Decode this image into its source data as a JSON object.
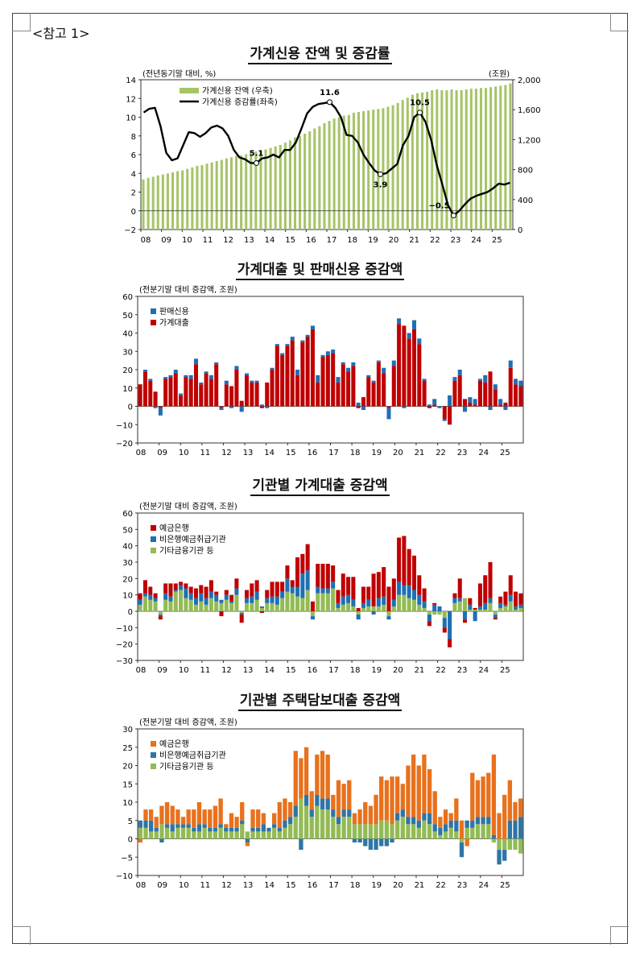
{
  "header": {
    "ref_label": "<참고 1>"
  },
  "colors": {
    "bank": "#c00000",
    "nonbank": "#1f6fb4",
    "other": "#93bb55",
    "mort_bank": "#e8711d",
    "mort_nonbank": "#2e75a6",
    "balance": "#a6c468",
    "growth": "#000000"
  },
  "chart_data": [
    {
      "type": "line",
      "title": "가계신용 잔액 및 증감률",
      "unit_left": "(전년동기말 대비, %)",
      "unit_right": "(조원)",
      "x_ticks": [
        "08",
        "09",
        "10",
        "11",
        "12",
        "13",
        "14",
        "15",
        "16",
        "17",
        "18",
        "19",
        "20",
        "21",
        "22",
        "23",
        "24",
        "25"
      ],
      "ylim_left": [
        -2,
        14
      ],
      "yticks_left": [
        "14",
        "12",
        "10",
        "8",
        "6",
        "4",
        "2",
        "0",
        "−2"
      ],
      "ylim_right": [
        0,
        2000
      ],
      "yticks_right": [
        "2,000",
        "1,600",
        "1,200",
        "800",
        "400",
        "0"
      ],
      "legend": {
        "placement": "top-left"
      },
      "series": [
        {
          "name": "가계신용 잔액 (우축)",
          "type": "bar",
          "axis": "right",
          "start": "2008Q1",
          "values": [
            670,
            690,
            705,
            723,
            735,
            748,
            763,
            780,
            790,
            810,
            830,
            850,
            860,
            880,
            895,
            915,
            930,
            950,
            965,
            985,
            990,
            1005,
            1020,
            1040,
            1050,
            1070,
            1090,
            1110,
            1130,
            1160,
            1190,
            1230,
            1250,
            1280,
            1310,
            1350,
            1380,
            1420,
            1450,
            1480,
            1500,
            1520,
            1530,
            1560,
            1570,
            1580,
            1590,
            1600,
            1610,
            1620,
            1640,
            1660,
            1690,
            1730,
            1760,
            1800,
            1820,
            1830,
            1840,
            1860,
            1870,
            1860,
            1860,
            1870,
            1860,
            1860,
            1870,
            1880,
            1880,
            1890,
            1890,
            1900,
            1910,
            1920,
            1930,
            1950
          ]
        },
        {
          "name": "가계신용 증감률(좌축)",
          "type": "line",
          "axis": "left",
          "start": "2008Q1",
          "values": [
            10.5,
            10.9,
            11.0,
            9.0,
            6.2,
            5.4,
            5.6,
            7.0,
            8.4,
            8.3,
            7.9,
            8.3,
            8.9,
            9.1,
            8.8,
            8.0,
            6.5,
            5.7,
            5.5,
            5.1,
            5.1,
            5.6,
            5.7,
            6.0,
            5.7,
            6.5,
            6.5,
            7.3,
            8.8,
            10.4,
            11.1,
            11.4,
            11.5,
            11.6,
            11.0,
            10.0,
            8.1,
            8.0,
            7.3,
            6.0,
            5.1,
            4.3,
            3.9,
            4.0,
            4.5,
            5.0,
            7.0,
            8.0,
            10.0,
            10.5,
            9.5,
            7.6,
            4.9,
            2.8,
            0.6,
            -0.5,
            0.0,
            0.7,
            1.3,
            1.6,
            1.8,
            2.0,
            2.4,
            2.9,
            2.8,
            3.0
          ]
        }
      ],
      "annotations": [
        {
          "label": "5.1",
          "x_index": 20
        },
        {
          "label": "11.6",
          "x_index": 33
        },
        {
          "label": "3.9",
          "x_index": 42
        },
        {
          "label": "10.5",
          "x_index": 49
        },
        {
          "label": "−0.5",
          "x_index": 55
        }
      ]
    },
    {
      "type": "bar",
      "title": "가계대출 및 판매신용 증감액",
      "unit": "(전분기말 대비 증감액, 조원)",
      "x_ticks": [
        "08",
        "09",
        "10",
        "11",
        "12",
        "13",
        "14",
        "15",
        "16",
        "17",
        "18",
        "19",
        "20",
        "21",
        "22",
        "23",
        "24",
        "25"
      ],
      "ylim": [
        -20,
        60
      ],
      "yticks": [
        "60",
        "50",
        "40",
        "30",
        "20",
        "10",
        "0",
        "−10",
        "−20"
      ],
      "legend": {
        "placement": "top-left"
      },
      "stacked": true,
      "series": [
        {
          "name": "판매신용",
          "color_key": "nonbank",
          "values": [
            0,
            1,
            1,
            -1,
            -4,
            1,
            1,
            2,
            1,
            1,
            2,
            3,
            1,
            1,
            2,
            1,
            -1,
            2,
            -1,
            2,
            -3,
            1,
            1,
            1,
            1,
            -1,
            1,
            1,
            1,
            1,
            2,
            3,
            1,
            1,
            2,
            4,
            1,
            2,
            2,
            3,
            1,
            2,
            2,
            2,
            -2,
            1,
            1,
            1,
            3,
            -6,
            3,
            3,
            -1,
            3,
            5,
            3,
            1,
            1,
            3,
            -1,
            -1,
            6,
            2,
            3,
            -3,
            3,
            3,
            1,
            4,
            -2,
            3,
            3,
            -2,
            4,
            3,
            3
          ]
        },
        {
          "name": "가계대출",
          "color_key": "bank",
          "values": [
            12,
            19,
            14,
            8,
            -1,
            15,
            16,
            18,
            6,
            16,
            15,
            23,
            12,
            18,
            15,
            23,
            -1,
            12,
            11,
            20,
            3,
            17,
            13,
            13,
            -1,
            13,
            20,
            33,
            28,
            33,
            36,
            17,
            35,
            38,
            42,
            13,
            27,
            28,
            29,
            13,
            23,
            19,
            22,
            -1,
            5,
            16,
            13,
            24,
            18,
            -1,
            22,
            45,
            44,
            37,
            42,
            34,
            14,
            -1,
            1,
            0,
            -7,
            -10,
            14,
            17,
            4,
            2,
            1,
            14,
            13,
            19,
            9,
            1,
            2,
            21,
            12,
            11
          ]
        }
      ]
    },
    {
      "type": "bar",
      "title": "기관별 가계대출 증감액",
      "unit": "(전분기말 대비 증감액, 조원)",
      "x_ticks": [
        "08",
        "09",
        "10",
        "11",
        "12",
        "13",
        "14",
        "15",
        "16",
        "17",
        "18",
        "19",
        "20",
        "21",
        "22",
        "23",
        "24",
        "25"
      ],
      "ylim": [
        -30,
        60
      ],
      "yticks": [
        "60",
        "50",
        "40",
        "30",
        "20",
        "10",
        "0",
        "−10",
        "−20",
        "−30"
      ],
      "legend": {
        "placement": "top-left"
      },
      "stacked": true,
      "series": [
        {
          "name": "예금은행",
          "color_key": "bank",
          "values": [
            4,
            8,
            5,
            3,
            -2,
            6,
            8,
            4,
            2,
            3,
            4,
            6,
            5,
            7,
            7,
            2,
            -3,
            3,
            4,
            6,
            -5,
            5,
            8,
            7,
            -1,
            5,
            9,
            9,
            6,
            8,
            4,
            18,
            12,
            16,
            6,
            14,
            15,
            15,
            10,
            8,
            14,
            11,
            14,
            2,
            10,
            8,
            20,
            16,
            18,
            15,
            13,
            27,
            30,
            22,
            21,
            12,
            8,
            -3,
            1,
            0,
            -3,
            -5,
            3,
            12,
            -2,
            4,
            1,
            14,
            17,
            22,
            -1,
            4,
            8,
            12,
            9,
            7
          ]
        },
        {
          "name": "비은행예금취급기관",
          "color_key": "nonbank",
          "values": [
            3,
            2,
            3,
            2,
            -1,
            4,
            3,
            1,
            3,
            6,
            4,
            4,
            5,
            4,
            4,
            4,
            2,
            3,
            1,
            4,
            -1,
            3,
            4,
            5,
            1,
            3,
            4,
            5,
            4,
            8,
            4,
            6,
            15,
            12,
            -2,
            4,
            3,
            3,
            4,
            3,
            5,
            5,
            4,
            -3,
            3,
            4,
            -2,
            5,
            5,
            -2,
            4,
            8,
            6,
            8,
            6,
            6,
            4,
            -4,
            4,
            3,
            -6,
            -17,
            3,
            2,
            -5,
            3,
            -6,
            2,
            4,
            3,
            -2,
            3,
            1,
            4,
            2,
            2
          ]
        },
        {
          "name": "기타금융기관 등",
          "color_key": "other",
          "values": [
            4,
            9,
            7,
            6,
            -2,
            7,
            6,
            12,
            13,
            8,
            7,
            4,
            6,
            4,
            8,
            6,
            5,
            7,
            5,
            10,
            -1,
            5,
            5,
            7,
            2,
            5,
            5,
            4,
            8,
            12,
            11,
            9,
            8,
            13,
            -3,
            11,
            11,
            11,
            14,
            2,
            4,
            5,
            3,
            -2,
            2,
            3,
            3,
            3,
            4,
            -3,
            3,
            10,
            10,
            8,
            7,
            4,
            2,
            -2,
            -2,
            -2,
            -4,
            0,
            5,
            6,
            8,
            1,
            1,
            1,
            1,
            5,
            -2,
            2,
            3,
            6,
            1,
            2
          ]
        }
      ]
    },
    {
      "type": "bar",
      "title": "기관별 주택담보대출 증감액",
      "unit": "(전분기말 대비 증감액, 조원)",
      "x_ticks": [
        "08",
        "09",
        "10",
        "11",
        "12",
        "13",
        "14",
        "15",
        "16",
        "17",
        "18",
        "19",
        "20",
        "21",
        "22",
        "23",
        "24",
        "25"
      ],
      "ylim": [
        -10,
        30
      ],
      "yticks": [
        "30",
        "25",
        "20",
        "15",
        "10",
        "5",
        "0",
        "−5",
        "−10"
      ],
      "legend": {
        "placement": "top-left"
      },
      "stacked": true,
      "series": [
        {
          "name": "예금은행",
          "color_key": "mort_bank",
          "values": [
            -1,
            3,
            3,
            3,
            5,
            6,
            5,
            4,
            2,
            4,
            5,
            6,
            4,
            5,
            6,
            7,
            1,
            4,
            3,
            5,
            -1,
            5,
            5,
            3,
            0,
            3,
            7,
            6,
            4,
            15,
            11,
            13,
            5,
            11,
            13,
            12,
            4,
            10,
            7,
            8,
            3,
            4,
            6,
            5,
            8,
            12,
            11,
            13,
            10,
            7,
            14,
            17,
            15,
            16,
            12,
            9,
            3,
            4,
            2,
            6,
            5,
            -2,
            13,
            10,
            11,
            12,
            22,
            7,
            12,
            11,
            5,
            5
          ]
        },
        {
          "name": "비은행예금취급기관",
          "color_key": "mort_nonbank",
          "values": [
            2,
            2,
            3,
            1,
            -1,
            1,
            2,
            1,
            1,
            1,
            1,
            2,
            1,
            1,
            1,
            1,
            1,
            1,
            1,
            1,
            -1,
            1,
            1,
            2,
            1,
            1,
            1,
            2,
            2,
            3,
            -3,
            3,
            2,
            3,
            3,
            3,
            2,
            2,
            2,
            2,
            -1,
            -1,
            -2,
            -3,
            -3,
            -2,
            -2,
            -1,
            2,
            2,
            2,
            2,
            2,
            2,
            3,
            2,
            2,
            2,
            2,
            3,
            -4,
            2,
            2,
            2,
            2,
            2,
            1,
            -4,
            -3,
            5,
            5,
            6
          ]
        },
        {
          "name": "기타금융기관 등",
          "color_key": "other",
          "values": [
            3,
            3,
            2,
            2,
            4,
            3,
            2,
            3,
            3,
            3,
            2,
            2,
            3,
            2,
            2,
            3,
            2,
            2,
            2,
            4,
            2,
            2,
            2,
            2,
            2,
            3,
            2,
            3,
            4,
            6,
            11,
            9,
            6,
            9,
            8,
            8,
            6,
            4,
            6,
            6,
            4,
            4,
            4,
            4,
            4,
            5,
            5,
            4,
            5,
            6,
            4,
            4,
            3,
            5,
            4,
            2,
            1,
            2,
            3,
            2,
            -1,
            3,
            3,
            4,
            4,
            4,
            -1,
            -3,
            -3,
            -3,
            -3,
            -4
          ]
        }
      ]
    }
  ]
}
